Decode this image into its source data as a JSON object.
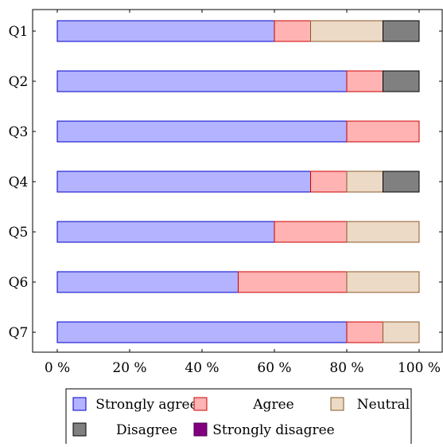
{
  "chart_data": {
    "type": "bar",
    "orientation": "horizontal",
    "stacked": true,
    "categories": [
      "Q1",
      "Q2",
      "Q3",
      "Q4",
      "Q5",
      "Q6",
      "Q7"
    ],
    "x_ticks": [
      "0 %",
      "20 %",
      "40 %",
      "60 %",
      "80 %",
      "100 %"
    ],
    "xlim": [
      0,
      100
    ],
    "grid": false,
    "legend_position": "bottom",
    "series": [
      {
        "name": "Strongly agree",
        "color": "#b3b3ff",
        "edge": "#0000cc",
        "values": [
          60,
          80,
          80,
          70,
          60,
          50,
          80
        ]
      },
      {
        "name": "Agree",
        "color": "#ffb3b3",
        "edge": "#cc0000",
        "values": [
          10,
          10,
          20,
          10,
          20,
          30,
          10
        ]
      },
      {
        "name": "Neutral",
        "color": "#ecd9c6",
        "edge": "#8b5a2b",
        "values": [
          20,
          0,
          0,
          10,
          20,
          20,
          10
        ]
      },
      {
        "name": "Disagree",
        "color": "#808080",
        "edge": "#000000",
        "values": [
          10,
          10,
          0,
          10,
          0,
          0,
          0
        ]
      },
      {
        "name": "Strongly disagree",
        "color": "#800080",
        "edge": "#4d004d",
        "values": [
          0,
          0,
          0,
          0,
          0,
          0,
          0
        ]
      }
    ]
  }
}
